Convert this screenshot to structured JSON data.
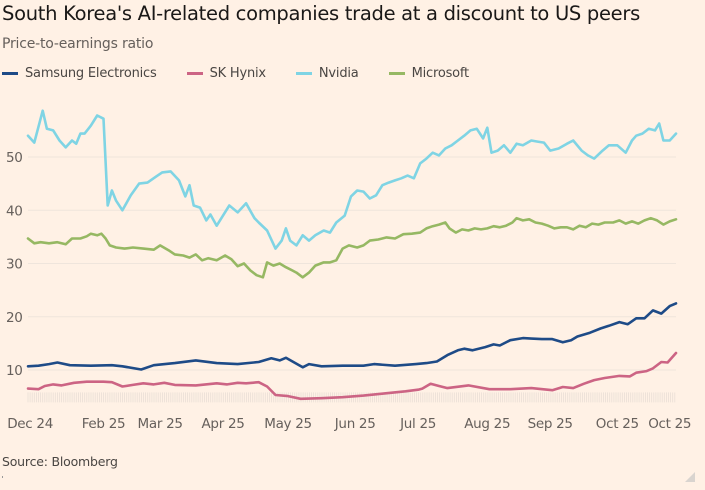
{
  "title": "South Korea's AI-related companies trade at a discount to US peers",
  "subtitle": "Price-to-earnings ratio",
  "source": "Source: Bloomberg",
  "legend": [
    {
      "name": "Samsung Electronics",
      "color": "#1e4b87"
    },
    {
      "name": "SK Hynix",
      "color": "#cc6484"
    },
    {
      "name": "Nvidia",
      "color": "#7fd4e4"
    },
    {
      "name": "Microsoft",
      "color": "#96b863"
    }
  ],
  "chart_data": {
    "type": "line",
    "title": "South Korea's AI-related companies trade at a discount to US peers",
    "ylabel": "Price-to-earnings ratio",
    "xlabel": "",
    "x_unit": "days since start of Dec 24",
    "xlim": [
      0,
      309
    ],
    "ylim": [
      5.6,
      59
    ],
    "yticks": [
      10,
      20,
      30,
      40,
      50
    ],
    "grid": true,
    "legend_position": "top-left",
    "xticks": [
      {
        "day": 1,
        "label": "Dec 24"
      },
      {
        "day": 36,
        "label": "Feb 25"
      },
      {
        "day": 63,
        "label": "Mar 25"
      },
      {
        "day": 93,
        "label": "Apr 25"
      },
      {
        "day": 124,
        "label": "May 25"
      },
      {
        "day": 156,
        "label": "Jun 25"
      },
      {
        "day": 186,
        "label": "Jul 25"
      },
      {
        "day": 219,
        "label": "Aug 25"
      },
      {
        "day": 249,
        "label": "Sep 25"
      },
      {
        "day": 281,
        "label": "Oct 25"
      },
      {
        "day": 306,
        "label": "Oct 25"
      }
    ],
    "series": [
      {
        "name": "Nvidia",
        "color": "#7fd4e4",
        "x": [
          0,
          3,
          6,
          7,
          9,
          12,
          15,
          18,
          21,
          23,
          25,
          27,
          30,
          33,
          36,
          38,
          40,
          42,
          45,
          49,
          53,
          57,
          61,
          64,
          68,
          72,
          75,
          77,
          79,
          82,
          85,
          87,
          90,
          93,
          96,
          100,
          104,
          108,
          110,
          114,
          118,
          121,
          123,
          125,
          128,
          131,
          134,
          137,
          141,
          144,
          147,
          151,
          154,
          157,
          160,
          163,
          166,
          169,
          172,
          175,
          178,
          181,
          184,
          187,
          190,
          193,
          196,
          199,
          202,
          205,
          208,
          211,
          214,
          217,
          219,
          221,
          224,
          227,
          230,
          233,
          236,
          240,
          243,
          246,
          249,
          253,
          257,
          260,
          264,
          267,
          270,
          274,
          277,
          281,
          285,
          288,
          290,
          293,
          296,
          299,
          301,
          303,
          306,
          309
        ],
        "values": [
          54.0,
          52.7,
          57.2,
          58.7,
          55.3,
          55.0,
          53.1,
          51.8,
          53.1,
          52.5,
          54.4,
          54.4,
          55.9,
          57.8,
          57.2,
          40.9,
          43.7,
          41.8,
          40.0,
          42.8,
          45.0,
          45.2,
          46.3,
          47.1,
          47.3,
          45.6,
          42.6,
          44.7,
          40.9,
          40.5,
          38.1,
          39.2,
          37.1,
          39.0,
          40.9,
          39.6,
          41.3,
          38.5,
          37.7,
          36.2,
          32.8,
          34.3,
          36.6,
          34.3,
          33.4,
          35.3,
          34.3,
          35.3,
          36.2,
          35.8,
          37.7,
          39.0,
          42.6,
          43.7,
          43.5,
          42.2,
          42.8,
          44.7,
          45.2,
          45.6,
          46.0,
          46.5,
          46.0,
          48.8,
          49.7,
          50.8,
          50.3,
          51.6,
          52.2,
          53.1,
          54.0,
          55.0,
          55.3,
          53.5,
          55.5,
          50.8,
          51.2,
          52.2,
          50.8,
          52.5,
          52.2,
          53.1,
          52.9,
          52.7,
          51.2,
          51.6,
          52.5,
          53.1,
          51.2,
          50.3,
          49.7,
          51.2,
          52.2,
          52.2,
          50.8,
          53.1,
          54.0,
          54.4,
          55.3,
          55.0,
          56.3,
          53.1,
          53.1,
          54.4
        ]
      },
      {
        "name": "Microsoft",
        "color": "#96b863",
        "x": [
          0,
          3,
          6,
          10,
          14,
          18,
          21,
          25,
          28,
          30,
          33,
          35,
          37,
          39,
          42,
          46,
          50,
          55,
          60,
          63,
          67,
          70,
          74,
          77,
          80,
          83,
          86,
          90,
          94,
          97,
          100,
          103,
          106,
          109,
          112,
          114,
          117,
          120,
          123,
          126,
          128,
          131,
          134,
          137,
          141,
          144,
          147,
          150,
          153,
          157,
          160,
          163,
          167,
          171,
          175,
          179,
          183,
          187,
          190,
          193,
          196,
          199,
          201,
          204,
          207,
          210,
          213,
          216,
          219,
          222,
          225,
          228,
          231,
          233,
          236,
          239,
          242,
          245,
          248,
          251,
          254,
          257,
          260,
          263,
          266,
          269,
          272,
          275,
          279,
          282,
          285,
          288,
          291,
          294,
          297,
          300,
          303,
          306,
          309
        ],
        "values": [
          34.7,
          33.8,
          34.0,
          33.8,
          34.0,
          33.6,
          34.7,
          34.7,
          35.1,
          35.6,
          35.3,
          35.6,
          34.7,
          33.4,
          33.0,
          32.8,
          33.0,
          32.8,
          32.6,
          33.4,
          32.5,
          31.7,
          31.5,
          31.1,
          31.7,
          30.6,
          31.0,
          30.6,
          31.5,
          30.8,
          29.5,
          30.0,
          28.7,
          27.8,
          27.4,
          30.2,
          29.6,
          30.0,
          29.3,
          28.7,
          28.3,
          27.4,
          28.3,
          29.6,
          30.2,
          30.2,
          30.6,
          32.8,
          33.4,
          33.0,
          33.4,
          34.3,
          34.5,
          34.9,
          34.7,
          35.5,
          35.6,
          35.8,
          36.6,
          37.0,
          37.3,
          37.7,
          36.6,
          35.8,
          36.4,
          36.2,
          36.6,
          36.4,
          36.6,
          37.0,
          36.8,
          37.1,
          37.7,
          38.5,
          38.1,
          38.3,
          37.7,
          37.5,
          37.1,
          36.6,
          36.8,
          36.8,
          36.4,
          37.1,
          36.8,
          37.5,
          37.3,
          37.7,
          37.7,
          38.1,
          37.5,
          37.9,
          37.5,
          38.1,
          38.5,
          38.1,
          37.3,
          37.9,
          38.3
        ]
      },
      {
        "name": "Samsung Electronics",
        "color": "#1e4b87",
        "x": [
          0,
          5,
          10,
          14,
          20,
          30,
          40,
          45,
          54,
          60,
          70,
          80,
          90,
          100,
          110,
          116,
          120,
          123,
          127,
          131,
          134,
          140,
          150,
          160,
          165,
          175,
          185,
          190,
          195,
          200,
          205,
          208,
          212,
          218,
          222,
          225,
          230,
          236,
          240,
          245,
          250,
          255,
          259,
          262,
          268,
          273,
          277,
          282,
          286,
          290,
          294,
          298,
          302,
          306,
          309
        ],
        "values": [
          10.7,
          10.8,
          11.1,
          11.4,
          10.9,
          10.8,
          10.9,
          10.7,
          10.1,
          10.9,
          11.3,
          11.8,
          11.3,
          11.1,
          11.5,
          12.2,
          11.8,
          12.3,
          11.4,
          10.5,
          11.1,
          10.7,
          10.8,
          10.8,
          11.1,
          10.8,
          11.1,
          11.3,
          11.6,
          12.8,
          13.7,
          14.0,
          13.7,
          14.3,
          14.8,
          14.6,
          15.6,
          16.0,
          15.9,
          15.8,
          15.8,
          15.2,
          15.6,
          16.3,
          17.0,
          17.8,
          18.3,
          19.0,
          18.6,
          19.7,
          19.7,
          21.2,
          20.6,
          22.0,
          22.5
        ]
      },
      {
        "name": "SK Hynix",
        "color": "#cc6484",
        "x": [
          0,
          5,
          8,
          12,
          16,
          22,
          28,
          36,
          40,
          45,
          50,
          55,
          60,
          65,
          70,
          80,
          90,
          95,
          100,
          104,
          110,
          114,
          118,
          124,
          130,
          140,
          150,
          160,
          170,
          180,
          186,
          188,
          192,
          196,
          200,
          210,
          220,
          230,
          240,
          250,
          255,
          260,
          265,
          270,
          275,
          282,
          287,
          290,
          295,
          298,
          302,
          305,
          309
        ],
        "values": [
          6.5,
          6.4,
          7.0,
          7.3,
          7.1,
          7.6,
          7.8,
          7.8,
          7.7,
          6.9,
          7.2,
          7.5,
          7.3,
          7.6,
          7.2,
          7.1,
          7.5,
          7.3,
          7.6,
          7.5,
          7.7,
          6.9,
          5.3,
          5.1,
          4.6,
          4.7,
          4.9,
          5.2,
          5.6,
          6.0,
          6.3,
          6.5,
          7.4,
          7.0,
          6.6,
          7.1,
          6.4,
          6.4,
          6.6,
          6.2,
          6.8,
          6.6,
          7.4,
          8.1,
          8.5,
          8.9,
          8.8,
          9.5,
          9.8,
          10.3,
          11.5,
          11.4,
          13.2
        ]
      }
    ]
  }
}
